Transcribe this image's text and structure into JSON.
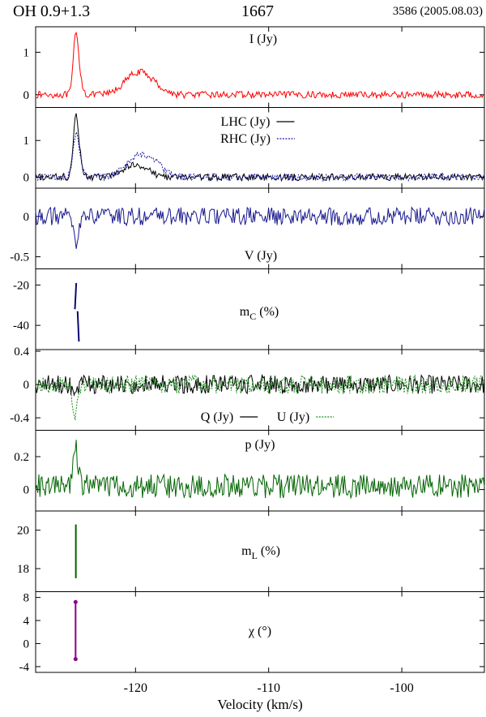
{
  "header": {
    "source": "OH 0.9+1.3",
    "frequency": "1667",
    "epoch": "3586 (2005.08.03)"
  },
  "chart_data": {
    "type": "line",
    "xlabel": "Velocity (km/s)",
    "xlim": [
      -127.5,
      -93.8
    ],
    "xticks": [
      -120,
      -110,
      -100
    ],
    "panels": [
      {
        "id": "I",
        "label": "I (Jy)",
        "ylim": [
          -0.3,
          1.6
        ],
        "yticks": [
          0,
          1
        ],
        "series": [
          {
            "legend": "",
            "color": "#ff0000",
            "dash": false,
            "amplitude": 0.05,
            "baseline": 0.0,
            "features": [
              {
                "v": -124.5,
                "peak": 1.3,
                "width": 0.18
              },
              {
                "v": -124.2,
                "peak": 0.4,
                "width": 0.2
              },
              {
                "v": -120.0,
                "peak": 0.45,
                "width": 0.9
              },
              {
                "v": -118.8,
                "peak": 0.2,
                "width": 0.8
              }
            ]
          }
        ]
      },
      {
        "id": "LR",
        "label": "",
        "ylim": [
          -0.3,
          1.9
        ],
        "yticks": [
          0,
          1
        ],
        "series": [
          {
            "legend": "LHC (Jy)",
            "color": "#000000",
            "dash": false,
            "amplitude": 0.06,
            "baseline": 0.0,
            "features": [
              {
                "v": -124.5,
                "peak": 1.6,
                "width": 0.18
              },
              {
                "v": -124.2,
                "peak": 0.5,
                "width": 0.2
              },
              {
                "v": -120.0,
                "peak": 0.35,
                "width": 0.9
              }
            ]
          },
          {
            "legend": "RHC (Jy)",
            "color": "#1a1aaa",
            "dash": true,
            "amplitude": 0.06,
            "baseline": 0.0,
            "features": [
              {
                "v": -124.5,
                "peak": 1.0,
                "width": 0.2
              },
              {
                "v": -124.2,
                "peak": 0.45,
                "width": 0.2
              },
              {
                "v": -119.8,
                "peak": 0.55,
                "width": 0.9
              },
              {
                "v": -118.5,
                "peak": 0.25,
                "width": 0.7
              }
            ]
          }
        ]
      },
      {
        "id": "V",
        "label": "V (Jy)",
        "ylim": [
          -0.65,
          0.35
        ],
        "yticks": [
          0,
          -0.5
        ],
        "series": [
          {
            "legend": "",
            "color": "#1a1a90",
            "dash": false,
            "amplitude": 0.07,
            "baseline": 0.0,
            "features": [
              {
                "v": -124.5,
                "peak": -0.33,
                "width": 0.18
              }
            ]
          }
        ]
      },
      {
        "id": "mC",
        "label": "mC (%)",
        "ylim": [
          -52,
          -12
        ],
        "yticks": [
          -20,
          -40
        ],
        "segments": [
          {
            "color": "#0a0a70",
            "v": [
              -124.55,
              -124.45
            ],
            "y": [
              -32,
              -19
            ]
          },
          {
            "color": "#0a0a70",
            "v": [
              -124.35,
              -124.25
            ],
            "y": [
              -33,
              -48
            ]
          }
        ]
      },
      {
        "id": "QU",
        "label": "",
        "ylim": [
          -0.55,
          0.42
        ],
        "yticks": [
          0.4,
          0,
          -0.4
        ],
        "series": [
          {
            "legend": "Q (Jy)",
            "color": "#000000",
            "dash": false,
            "amplitude": 0.07,
            "baseline": 0.0,
            "features": [
              {
                "v": -124.5,
                "peak": -0.1,
                "width": 0.2
              }
            ]
          },
          {
            "legend": "U (Jy)",
            "color": "#1a8a1a",
            "dash": true,
            "amplitude": 0.07,
            "baseline": 0.0,
            "features": [
              {
                "v": -124.5,
                "peak": -0.32,
                "width": 0.2
              }
            ]
          }
        ]
      },
      {
        "id": "p",
        "label": "p (Jy)",
        "ylim": [
          -0.13,
          0.36
        ],
        "yticks": [
          0.2,
          0
        ],
        "series": [
          {
            "legend": "",
            "color": "#006400",
            "dash": false,
            "amplitude": 0.045,
            "baseline": 0.02,
            "features": [
              {
                "v": -124.5,
                "peak": 0.24,
                "width": 0.18
              }
            ]
          }
        ]
      },
      {
        "id": "mL",
        "label": "mL (%)",
        "ylim": [
          16.8,
          21.0
        ],
        "yticks": [
          20,
          18
        ],
        "segments": [
          {
            "color": "#006400",
            "v": [
              -124.48,
              -124.48
            ],
            "y": [
              20.3,
              17.5
            ]
          }
        ]
      },
      {
        "id": "chi",
        "label": "χ (°)",
        "ylim": [
          -5.0,
          9.0
        ],
        "yticks": [
          8,
          4,
          0,
          -4
        ],
        "segments": [
          {
            "color": "#8b008b",
            "v": [
              -124.5,
              -124.5
            ],
            "y": [
              7.2,
              -2.7
            ],
            "markers": true
          }
        ]
      }
    ]
  }
}
